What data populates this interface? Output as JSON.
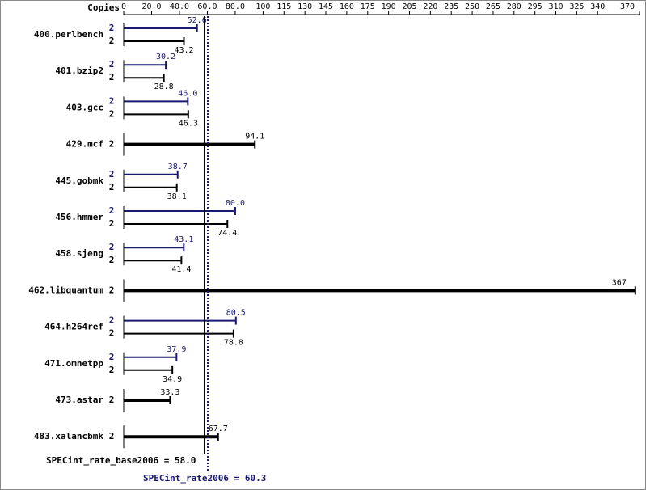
{
  "chart_data": {
    "type": "bar",
    "orientation": "horizontal",
    "axis_title": "Copies",
    "categories": [
      "400.perlbench",
      "401.bzip2",
      "403.gcc",
      "429.mcf",
      "445.gobmk",
      "456.hmmer",
      "458.sjeng",
      "462.libquantum",
      "464.h264ref",
      "471.omnetpp",
      "473.astar",
      "483.xalancbmk"
    ],
    "series": [
      {
        "color": "#191970",
        "copies": [
          2,
          2,
          2,
          null,
          2,
          2,
          2,
          null,
          2,
          2,
          null,
          null
        ],
        "values": [
          52.6,
          30.2,
          46.0,
          null,
          38.7,
          80.0,
          43.1,
          null,
          80.5,
          37.9,
          null,
          null
        ],
        "value_labels": [
          "52.6",
          "30.2",
          "46.0",
          null,
          "38.7",
          "80.0",
          "43.1",
          null,
          "80.5",
          "37.9",
          null,
          null
        ]
      },
      {
        "color": "#000000",
        "copies": [
          2,
          2,
          2,
          2,
          2,
          2,
          2,
          2,
          2,
          2,
          2,
          2
        ],
        "values": [
          43.2,
          28.8,
          46.3,
          94.1,
          38.1,
          74.4,
          41.4,
          367,
          78.8,
          34.9,
          33.3,
          67.7
        ],
        "value_labels": [
          "43.2",
          "28.8",
          "46.3",
          "94.1",
          "38.1",
          "74.4",
          "41.4",
          "367",
          "78.8",
          "34.9",
          "33.3",
          "67.7"
        ]
      }
    ],
    "xlim": [
      0,
      370
    ],
    "xticks": [
      0,
      {
        "value": 20,
        "label": "20.0"
      },
      {
        "value": 40,
        "label": "40.0"
      },
      {
        "value": 60,
        "label": "60.0"
      },
      {
        "value": 80,
        "label": "80.0"
      },
      100,
      115,
      130,
      145,
      160,
      175,
      190,
      205,
      220,
      235,
      250,
      265,
      280,
      295,
      310,
      325,
      340,
      370
    ],
    "reference_lines": [
      {
        "label": "SPECint_rate_base2006 = 58.0",
        "value": 58.0,
        "color": "#000000",
        "style": "solid"
      },
      {
        "label": "SPECint_rate2006 = 60.3",
        "value": 60.3,
        "color": "#191970",
        "style": "dotted"
      }
    ]
  }
}
